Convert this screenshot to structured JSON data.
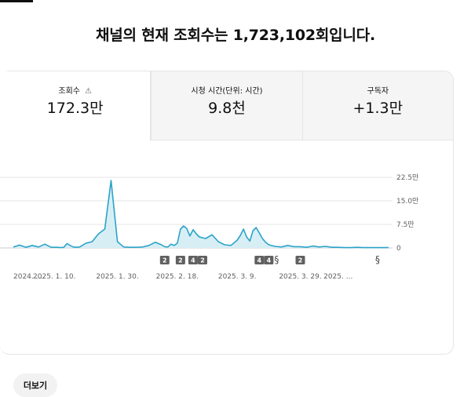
{
  "headline": "채널의 현재 조회수는 1,723,102회입니다.",
  "tabs": [
    {
      "label": "조회수",
      "value": "172.3만",
      "warning_icon": "warning-triangle-icon",
      "active": true
    },
    {
      "label": "시청 시간(단위: 시간)",
      "value": "9.8천",
      "active": false
    },
    {
      "label": "구독자",
      "value": "+1.3만",
      "active": false
    }
  ],
  "more_button": "더보기",
  "colors": {
    "line": "#2ba3c8",
    "fill": "#d8eef5",
    "marker": "#606060"
  },
  "chart_data": {
    "type": "area",
    "y_tick_labels": [
      "22.5만",
      "15.0만",
      "7.5만",
      "0"
    ],
    "y_ticks": [
      225000,
      150000,
      75000,
      0
    ],
    "ylim": [
      0,
      225000
    ],
    "x_tick_labels": [
      "2024. ...",
      "2025. 1. 10.",
      "2025. 1. 30.",
      "2025. 2. 18.",
      "2025. 3. 9.",
      "2025. 3. 29.",
      "2025. ..."
    ],
    "x_tick_days": [
      -1,
      10,
      30,
      49,
      68,
      88,
      100
    ],
    "xlim": [
      -3,
      116
    ],
    "grid": true,
    "series": [
      {
        "x": [
          -3,
          -1,
          1,
          3,
          5,
          7,
          9,
          11,
          12,
          13,
          14,
          15,
          16,
          17,
          18,
          20,
          22,
          24,
          26,
          28,
          30,
          32,
          34,
          36,
          38,
          40,
          42,
          44,
          45,
          46,
          47,
          48,
          49,
          50,
          51,
          52,
          53,
          54,
          55,
          56,
          58,
          60,
          62,
          64,
          66,
          68,
          69,
          70,
          71,
          72,
          73,
          74,
          75,
          76,
          77,
          78,
          80,
          82,
          84,
          86,
          88,
          90,
          92,
          94,
          96,
          98,
          100,
          102,
          104,
          106,
          108,
          110,
          112,
          114,
          116
        ],
        "y": [
          3000,
          9000,
          2000,
          8000,
          3000,
          12000,
          2000,
          2000,
          1000,
          2000,
          14000,
          8000,
          3000,
          2000,
          3000,
          15000,
          20000,
          45000,
          60000,
          215000,
          20000,
          3000,
          2000,
          2000,
          3000,
          8000,
          18000,
          10000,
          4000,
          3000,
          12000,
          8000,
          15000,
          60000,
          70000,
          62000,
          38000,
          58000,
          45000,
          35000,
          30000,
          42000,
          20000,
          10000,
          8000,
          25000,
          40000,
          60000,
          35000,
          22000,
          55000,
          65000,
          48000,
          30000,
          18000,
          10000,
          5000,
          3000,
          8000,
          4000,
          4000,
          2000,
          6000,
          3000,
          5000,
          2000,
          2000,
          1000,
          1000,
          2000,
          1000,
          1000,
          1000,
          1000,
          1000
        ]
      }
    ],
    "markers": [
      {
        "label": "2",
        "day": 45
      },
      {
        "label": "2",
        "day": 50
      },
      {
        "label": "4",
        "day": 54
      },
      {
        "label": "2",
        "day": 57
      },
      {
        "label": "4",
        "day": 75
      },
      {
        "label": "4",
        "day": 78
      },
      {
        "label": "shorts",
        "day": 81,
        "icon": "shorts-icon"
      },
      {
        "label": "2",
        "day": 88
      },
      {
        "label": "shorts",
        "day": 113,
        "icon": "shorts-icon"
      }
    ]
  }
}
